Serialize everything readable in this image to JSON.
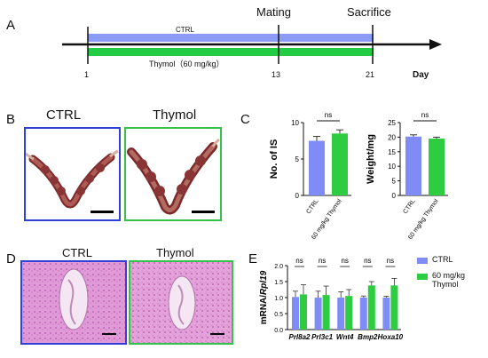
{
  "panelA": {
    "label": "A",
    "mating_label": "Mating",
    "sacrifice_label": "Sacrifice",
    "ctrl_label": "CTRL",
    "thymol_label": "Thymol（60 mg/kg）",
    "ticks": [
      "1",
      "13",
      "21"
    ],
    "axis_unit": "Day",
    "ctrl_color": "#8C9CF6",
    "thymol_color": "#22CC44"
  },
  "panelB": {
    "label": "B",
    "ctrl_title": "CTRL",
    "thymol_title": "Thymol",
    "ctrl_border": "#2F3FD8",
    "thymol_border": "#35C24A"
  },
  "panelD": {
    "label": "D",
    "ctrl_title": "CTRL",
    "thymol_title": "Thymol",
    "ctrl_border": "#2F3FD8",
    "thymol_border": "#35C24A"
  },
  "panelC": {
    "label": "C"
  },
  "panelE": {
    "label": "E"
  },
  "chart_data": [
    {
      "type": "bar",
      "panel": "C-left",
      "categories": [
        "CTRL",
        "60 mg/kg Thymol"
      ],
      "values": [
        7.5,
        8.5
      ],
      "errors": [
        0.6,
        0.5
      ],
      "colors": [
        "#7F8CF5",
        "#2ECC40"
      ],
      "ylabel": "No. of IS",
      "ylim": [
        0,
        10
      ],
      "yticks": [
        0,
        5,
        10
      ],
      "significance": "ns"
    },
    {
      "type": "bar",
      "panel": "C-right",
      "categories": [
        "CTRL",
        "60 mg/kg Thymol"
      ],
      "values": [
        20.2,
        19.5
      ],
      "errors": [
        0.6,
        0.5
      ],
      "colors": [
        "#7F8CF5",
        "#2ECC40"
      ],
      "ylabel": "Weight/mg",
      "ylim": [
        0,
        25
      ],
      "yticks": [
        0,
        5,
        10,
        15,
        20,
        25
      ],
      "significance": "ns"
    },
    {
      "type": "bar",
      "panel": "E",
      "categories": [
        "Prl8a2",
        "Prl3c1",
        "Wnt4",
        "Bmp2",
        "Hoxa10"
      ],
      "series": [
        {
          "name": "CTRL",
          "values": [
            1.02,
            1.0,
            1.0,
            1.0,
            1.0
          ],
          "errors": [
            0.18,
            0.2,
            0.18,
            0.05,
            0.04
          ],
          "color": "#7F8CF5"
        },
        {
          "name": "60 mg/kg Thymol",
          "values": [
            1.1,
            1.08,
            1.05,
            1.38,
            1.38
          ],
          "errors": [
            0.3,
            0.28,
            0.2,
            0.12,
            0.22
          ],
          "color": "#2ECC40"
        }
      ],
      "ylabel_prefix": "mRNA/",
      "ylabel_gene": "Rpl19",
      "ylim": [
        0,
        2.0
      ],
      "yticks": [
        "0.0",
        "0.5",
        "1.0",
        "1.5",
        "2.0"
      ],
      "significance": [
        "ns",
        "ns",
        "ns",
        "ns",
        "ns"
      ]
    }
  ]
}
